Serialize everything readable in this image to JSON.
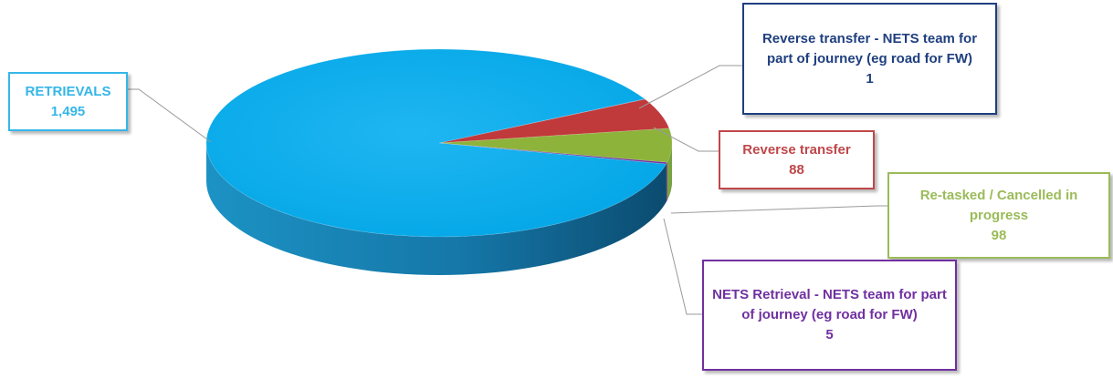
{
  "chart_data": {
    "type": "pie",
    "title": "",
    "slices": [
      {
        "label": "RETRIEVALS",
        "display_value": "1,495",
        "value": 1495,
        "color": "#00aeef",
        "text_color": "#35b6e8"
      },
      {
        "label": "Reverse transfer - NETS team for part of journey (eg road for FW)",
        "display_value": "1",
        "value": 1,
        "color": "#1f3f7f",
        "text_color": "#1f3f7f"
      },
      {
        "label": "Reverse transfer",
        "display_value": "88",
        "value": 88,
        "color": "#c0393b",
        "text_color": "#c0474a"
      },
      {
        "label": "Re-tasked / Cancelled in progress",
        "display_value": "98",
        "value": 98,
        "color": "#8db33a",
        "text_color": "#9bbb59"
      },
      {
        "label": "NETS Retrieval - NETS team for part of journey (eg road for FW)",
        "display_value": "5",
        "value": 5,
        "color": "#7030a0",
        "text_color": "#7030a0"
      }
    ],
    "legend": "none",
    "style": "3d-pie"
  }
}
